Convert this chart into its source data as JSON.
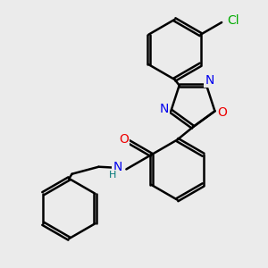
{
  "background_color": "#ebebeb",
  "bond_color": "#000000",
  "bond_width": 1.8,
  "atom_colors": {
    "N": "#0000ee",
    "O": "#ee0000",
    "Cl": "#00aa00",
    "H": "#007777"
  },
  "ring_r": 0.52,
  "ox_r": 0.36,
  "dbo": 0.028
}
